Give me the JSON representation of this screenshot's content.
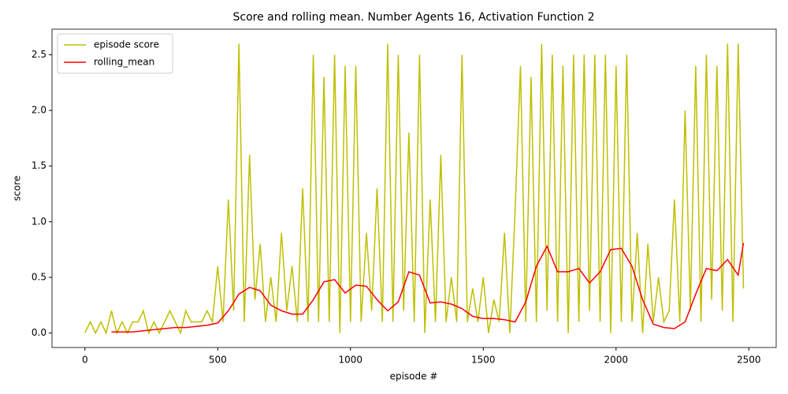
{
  "chart_data": {
    "type": "line",
    "title": "Score and rolling mean. Number Agents 16, Activation Function 2",
    "xlabel": "episode #",
    "ylabel": "score",
    "xlim": [
      -124,
      2603
    ],
    "ylim": [
      -0.13,
      2.73
    ],
    "xticks": [
      0,
      500,
      1000,
      1500,
      2000,
      2500
    ],
    "yticks": [
      {
        "value": 0,
        "label": "0.0"
      },
      0.5,
      {
        "value": 1,
        "label": "1.0"
      },
      1.5,
      {
        "value": 2,
        "label": "2.0"
      },
      2.5
    ],
    "legend": "upper left",
    "series": [
      {
        "name": "episode score",
        "color": "#bfbf00",
        "x": [
          0,
          20,
          40,
          60,
          80,
          100,
          120,
          140,
          160,
          180,
          200,
          220,
          240,
          260,
          280,
          300,
          320,
          340,
          360,
          380,
          400,
          420,
          440,
          460,
          480,
          500,
          520,
          540,
          560,
          580,
          600,
          620,
          640,
          660,
          680,
          700,
          720,
          740,
          760,
          780,
          800,
          820,
          840,
          860,
          880,
          900,
          920,
          940,
          960,
          980,
          1000,
          1020,
          1040,
          1060,
          1080,
          1100,
          1120,
          1140,
          1160,
          1180,
          1200,
          1220,
          1240,
          1260,
          1280,
          1300,
          1320,
          1340,
          1360,
          1380,
          1400,
          1420,
          1440,
          1460,
          1480,
          1500,
          1520,
          1540,
          1560,
          1580,
          1600,
          1620,
          1640,
          1660,
          1680,
          1700,
          1720,
          1740,
          1760,
          1780,
          1800,
          1820,
          1840,
          1860,
          1880,
          1900,
          1920,
          1940,
          1960,
          1980,
          2000,
          2020,
          2040,
          2060,
          2080,
          2100,
          2120,
          2140,
          2160,
          2180,
          2200,
          2220,
          2240,
          2260,
          2280,
          2300,
          2320,
          2340,
          2360,
          2380,
          2400,
          2420,
          2440,
          2460,
          2480
        ],
        "values": [
          0,
          0.1,
          0,
          0.1,
          0,
          0.2,
          0,
          0.1,
          0,
          0.1,
          0.1,
          0.2,
          0,
          0.1,
          0,
          0.1,
          0.2,
          0.1,
          0,
          0.2,
          0.1,
          0.1,
          0.1,
          0.2,
          0.1,
          0.6,
          0.1,
          1.2,
          0.2,
          2.6,
          0.1,
          1.6,
          0.3,
          0.8,
          0.1,
          0.5,
          0.1,
          0.9,
          0.2,
          0.6,
          0.1,
          1.3,
          0.1,
          2.5,
          0.1,
          2.3,
          0.1,
          2.5,
          0,
          2.4,
          0.1,
          2.4,
          0.1,
          0.9,
          0.2,
          1.3,
          0.1,
          2.6,
          0.1,
          2.5,
          0.2,
          1.8,
          0.1,
          2.5,
          0,
          1.2,
          0.1,
          1.6,
          0.1,
          0.5,
          0.1,
          2.5,
          0.1,
          0.4,
          0.1,
          0.5,
          0,
          0.3,
          0.1,
          0.9,
          0,
          1.1,
          2.4,
          0.1,
          2.3,
          0.1,
          2.6,
          0.2,
          2.5,
          0.1,
          2.4,
          0,
          2.5,
          0.1,
          2.5,
          0.2,
          2.5,
          0.1,
          2.5,
          0,
          2.4,
          0.1,
          2.5,
          0.1,
          0.9,
          0,
          0.8,
          0.1,
          0.5,
          0.1,
          0.2,
          1.2,
          0.1,
          2.0,
          0.2,
          2.4,
          0.1,
          2.5,
          0.3,
          2.4,
          0.2,
          2.6,
          0.1,
          2.6,
          0.4
        ]
      },
      {
        "name": "rolling_mean",
        "color": "#ff0000",
        "x": [
          100,
          140,
          180,
          220,
          260,
          300,
          340,
          380,
          420,
          460,
          500,
          540,
          580,
          620,
          660,
          700,
          740,
          780,
          820,
          860,
          900,
          940,
          980,
          1020,
          1060,
          1100,
          1140,
          1180,
          1220,
          1260,
          1300,
          1340,
          1380,
          1420,
          1460,
          1500,
          1540,
          1580,
          1620,
          1660,
          1700,
          1740,
          1780,
          1820,
          1860,
          1900,
          1940,
          1980,
          2020,
          2060,
          2100,
          2140,
          2180,
          2220,
          2260,
          2300,
          2340,
          2380,
          2420,
          2460,
          2480
        ],
        "values": [
          0.01,
          0.01,
          0.01,
          0.02,
          0.03,
          0.04,
          0.05,
          0.05,
          0.06,
          0.07,
          0.09,
          0.2,
          0.35,
          0.41,
          0.38,
          0.25,
          0.2,
          0.17,
          0.17,
          0.3,
          0.46,
          0.48,
          0.36,
          0.43,
          0.42,
          0.3,
          0.2,
          0.28,
          0.55,
          0.52,
          0.27,
          0.28,
          0.26,
          0.22,
          0.15,
          0.13,
          0.13,
          0.12,
          0.1,
          0.28,
          0.6,
          0.78,
          0.55,
          0.55,
          0.58,
          0.45,
          0.55,
          0.75,
          0.76,
          0.6,
          0.3,
          0.08,
          0.05,
          0.04,
          0.1,
          0.35,
          0.58,
          0.56,
          0.66,
          0.52,
          0.81
        ]
      }
    ]
  }
}
